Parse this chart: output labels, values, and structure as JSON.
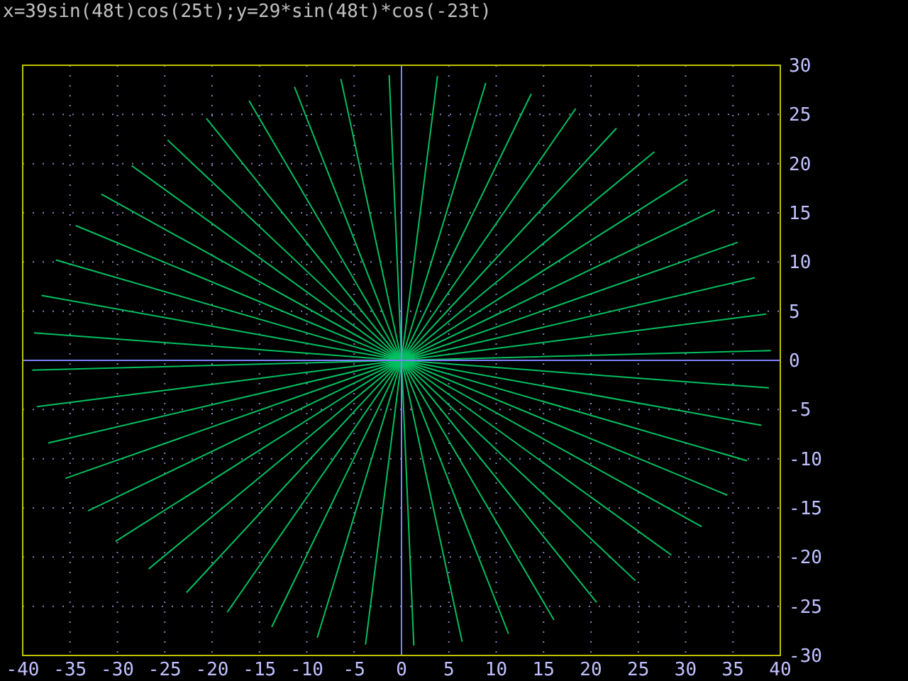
{
  "chart_data": {
    "type": "line",
    "title": "x=39sin(48t)cos(25t);y=29*sin(48t)*cos(-23t)",
    "series": [
      {
        "color": "#00c060",
        "x": [
          26.7,
          0,
          -26.7
        ],
        "values": [
          21.2,
          0,
          -21.2
        ]
      },
      {
        "color": "#00c060",
        "x": [
          30.2,
          0,
          -30.2
        ],
        "values": [
          18.4,
          0,
          -18.4
        ]
      },
      {
        "color": "#00c060",
        "x": [
          -22.7,
          0,
          22.7
        ],
        "values": [
          -23.6,
          0,
          23.6
        ]
      },
      {
        "color": "#00c060",
        "x": [
          -33.1,
          0,
          33.1
        ],
        "values": [
          -15.3,
          0,
          15.3
        ]
      },
      {
        "color": "#00c060",
        "x": [
          18.4,
          0,
          -18.4
        ],
        "values": [
          25.6,
          0,
          -25.6
        ]
      },
      {
        "color": "#00c060",
        "x": [
          35.5,
          0,
          -35.5
        ],
        "values": [
          12.0,
          0,
          -12.0
        ]
      },
      {
        "color": "#00c060",
        "x": [
          -13.7,
          0,
          13.7
        ],
        "values": [
          -27.1,
          0,
          27.1
        ]
      },
      {
        "color": "#00c060",
        "x": [
          -37.3,
          0,
          37.3
        ],
        "values": [
          -8.4,
          0,
          8.4
        ]
      },
      {
        "color": "#00c060",
        "x": [
          8.9,
          0,
          -8.9
        ],
        "values": [
          28.2,
          0,
          -28.2
        ]
      },
      {
        "color": "#00c060",
        "x": [
          38.5,
          0,
          -38.5
        ],
        "values": [
          4.7,
          0,
          -4.7
        ]
      },
      {
        "color": "#00c060",
        "x": [
          -3.8,
          0,
          3.8
        ],
        "values": [
          -28.9,
          0,
          28.9
        ]
      },
      {
        "color": "#00c060",
        "x": [
          -39.0,
          0,
          39.0
        ],
        "values": [
          -1.0,
          0,
          1.0
        ]
      },
      {
        "color": "#00c060",
        "x": [
          -1.3,
          0,
          1.3
        ],
        "values": [
          29.0,
          0,
          -29.0
        ]
      },
      {
        "color": "#00c060",
        "x": [
          38.8,
          0,
          -38.8
        ],
        "values": [
          -2.8,
          0,
          2.8
        ]
      },
      {
        "color": "#00c060",
        "x": [
          6.4,
          0,
          -6.4
        ],
        "values": [
          -28.6,
          0,
          28.6
        ]
      },
      {
        "color": "#00c060",
        "x": [
          -38.0,
          0,
          38.0
        ],
        "values": [
          6.6,
          0,
          -6.6
        ]
      },
      {
        "color": "#00c060",
        "x": [
          -11.3,
          0,
          11.3
        ],
        "values": [
          27.8,
          0,
          -27.8
        ]
      },
      {
        "color": "#00c060",
        "x": [
          36.5,
          0,
          -36.5
        ],
        "values": [
          -10.2,
          0,
          10.2
        ]
      },
      {
        "color": "#00c060",
        "x": [
          16.1,
          0,
          -16.1
        ],
        "values": [
          -26.4,
          0,
          26.4
        ]
      },
      {
        "color": "#00c060",
        "x": [
          -34.4,
          0,
          34.4
        ],
        "values": [
          13.7,
          0,
          -13.7
        ]
      },
      {
        "color": "#00c060",
        "x": [
          -20.6,
          0,
          20.6
        ],
        "values": [
          24.6,
          0,
          -24.6
        ]
      },
      {
        "color": "#00c060",
        "x": [
          31.7,
          0,
          -31.7
        ],
        "values": [
          -16.9,
          0,
          16.9
        ]
      },
      {
        "color": "#00c060",
        "x": [
          24.7,
          0,
          -24.7
        ],
        "values": [
          -22.4,
          0,
          22.4
        ]
      },
      {
        "color": "#00c060",
        "x": [
          -28.5,
          0,
          28.5
        ],
        "values": [
          19.8,
          0,
          -19.8
        ]
      }
    ],
    "xlim": [
      -40,
      40
    ],
    "ylim": [
      -30,
      30
    ],
    "xticks": [
      -40,
      -35,
      -30,
      -25,
      -20,
      -15,
      -10,
      -5,
      0,
      5,
      10,
      15,
      20,
      25,
      30,
      35,
      40
    ],
    "yticks": [
      -30,
      -25,
      -20,
      -15,
      -10,
      -5,
      0,
      5,
      10,
      15,
      20,
      25,
      30
    ],
    "grid": true
  }
}
